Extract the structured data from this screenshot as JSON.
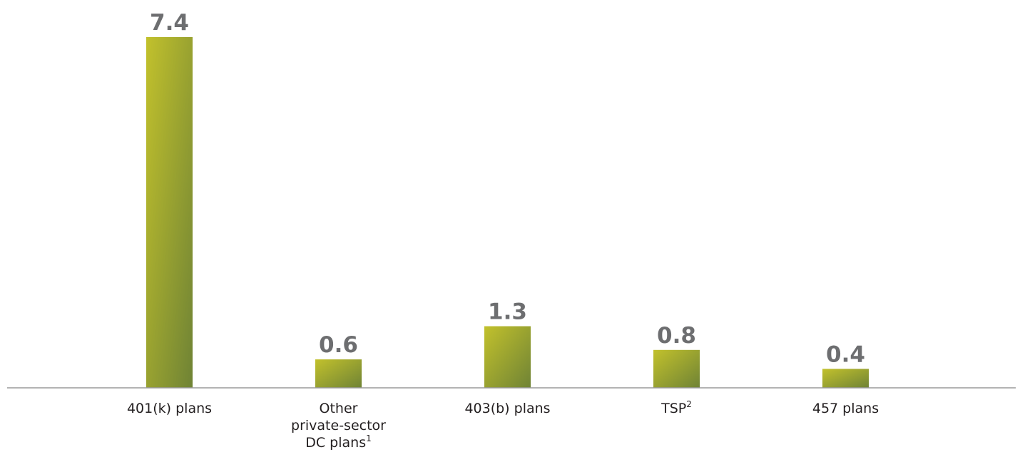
{
  "chart_data": {
    "type": "bar",
    "title": "",
    "xlabel": "",
    "ylabel": "",
    "categories": [
      {
        "lines": [
          "401(k) plans"
        ],
        "sup": ""
      },
      {
        "lines": [
          "Other",
          "private-sector",
          "DC plans"
        ],
        "sup": "1"
      },
      {
        "lines": [
          "403(b) plans"
        ],
        "sup": ""
      },
      {
        "lines": [
          "TSP"
        ],
        "sup": "2"
      },
      {
        "lines": [
          "457 plans"
        ],
        "sup": ""
      }
    ],
    "values": [
      7.4,
      0.6,
      1.3,
      0.8,
      0.4
    ],
    "value_labels": [
      "7.4",
      "0.6",
      "1.3",
      "0.8",
      "0.4"
    ],
    "ylim": [
      0,
      7.4
    ],
    "grid": false,
    "legend": "none",
    "colors": {
      "bar_top": "#c2c12c",
      "bar_bottom": "#6f8335",
      "value_text": "#6d6e70",
      "category_text": "#231f20",
      "axis": "#9a9a9a"
    }
  }
}
